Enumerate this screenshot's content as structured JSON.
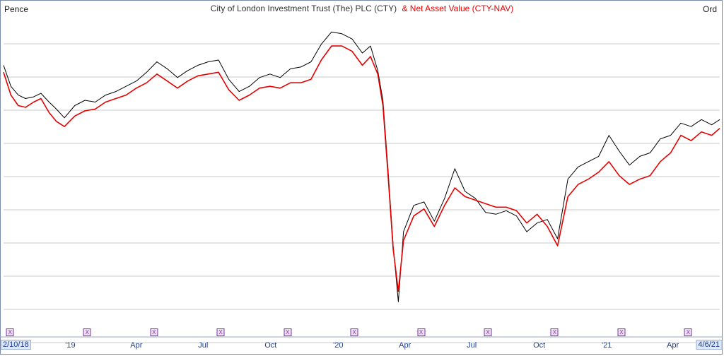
{
  "header": {
    "unit_label": "Pence",
    "title_main": "City of London Investment Trust (The) PLC (CTY)",
    "title_nav": "& Net Asset Value (CTY-NAV)",
    "share_class": "Ord"
  },
  "colors": {
    "price_series": "#000000",
    "nav_series": "#e60000",
    "grid": "#c8c8c8",
    "axis_text": "#1f3f8f",
    "marker": "#7a3a9a"
  },
  "chart_data": {
    "type": "line",
    "title": "City of London Investment Trust (The) PLC (CTY) & Net Asset Value (CTY-NAV)",
    "ylabel": "Pence",
    "ylim": [
      276,
      455
    ],
    "y_ticks_labeled": false,
    "grid": "horizontal",
    "x_ticks": [
      {
        "label": "2/10/18",
        "date": "2018-10-02",
        "edge": "start"
      },
      {
        "label": "'19",
        "date": "2019-01-01"
      },
      {
        "label": "Apr",
        "date": "2019-04-01"
      },
      {
        "label": "Jul",
        "date": "2019-07-01"
      },
      {
        "label": "Oct",
        "date": "2019-10-01"
      },
      {
        "label": "'20",
        "date": "2020-01-01"
      },
      {
        "label": "Apr",
        "date": "2020-04-01"
      },
      {
        "label": "Jul",
        "date": "2020-07-01"
      },
      {
        "label": "Oct",
        "date": "2020-10-01"
      },
      {
        "label": "'21",
        "date": "2021-01-01"
      },
      {
        "label": "Apr",
        "date": "2021-04-01"
      },
      {
        "label": "4/6/21",
        "date": "2021-06-04",
        "edge": "end"
      }
    ],
    "xd_markers": {
      "label": "X",
      "dates": [
        "2018-10-11",
        "2019-01-24",
        "2019-04-25",
        "2019-07-25",
        "2019-10-24",
        "2020-01-23",
        "2020-04-23",
        "2020-07-23",
        "2020-10-22",
        "2021-01-21",
        "2021-04-22"
      ]
    },
    "series": [
      {
        "name": "CTY",
        "color": "#000000",
        "points": [
          [
            "2018-10-02",
            425
          ],
          [
            "2018-10-12",
            413
          ],
          [
            "2018-10-22",
            408
          ],
          [
            "2018-11-01",
            406
          ],
          [
            "2018-11-12",
            407
          ],
          [
            "2018-11-22",
            409
          ],
          [
            "2018-12-03",
            404
          ],
          [
            "2018-12-13",
            400
          ],
          [
            "2018-12-24",
            395
          ],
          [
            "2019-01-07",
            402
          ],
          [
            "2019-01-21",
            405
          ],
          [
            "2019-02-04",
            404
          ],
          [
            "2019-02-18",
            408
          ],
          [
            "2019-03-04",
            410
          ],
          [
            "2019-03-18",
            413
          ],
          [
            "2019-04-01",
            416
          ],
          [
            "2019-04-15",
            421
          ],
          [
            "2019-04-29",
            427
          ],
          [
            "2019-05-13",
            423
          ],
          [
            "2019-05-27",
            418
          ],
          [
            "2019-06-10",
            422
          ],
          [
            "2019-06-24",
            425
          ],
          [
            "2019-07-08",
            427
          ],
          [
            "2019-07-22",
            428
          ],
          [
            "2019-08-05",
            417
          ],
          [
            "2019-08-19",
            410
          ],
          [
            "2019-09-02",
            413
          ],
          [
            "2019-09-16",
            418
          ],
          [
            "2019-09-30",
            420
          ],
          [
            "2019-10-14",
            418
          ],
          [
            "2019-10-28",
            423
          ],
          [
            "2019-11-11",
            424
          ],
          [
            "2019-11-25",
            427
          ],
          [
            "2019-12-09",
            437
          ],
          [
            "2019-12-23",
            444
          ],
          [
            "2020-01-06",
            443
          ],
          [
            "2020-01-20",
            440
          ],
          [
            "2020-02-03",
            432
          ],
          [
            "2020-02-14",
            436
          ],
          [
            "2020-02-24",
            422
          ],
          [
            "2020-03-02",
            405
          ],
          [
            "2020-03-09",
            365
          ],
          [
            "2020-03-16",
            322
          ],
          [
            "2020-03-23",
            290
          ],
          [
            "2020-03-30",
            330
          ],
          [
            "2020-04-13",
            345
          ],
          [
            "2020-04-27",
            347
          ],
          [
            "2020-05-11",
            336
          ],
          [
            "2020-05-25",
            349
          ],
          [
            "2020-06-08",
            366
          ],
          [
            "2020-06-22",
            353
          ],
          [
            "2020-07-06",
            349
          ],
          [
            "2020-07-20",
            341
          ],
          [
            "2020-08-03",
            340
          ],
          [
            "2020-08-17",
            342
          ],
          [
            "2020-08-31",
            339
          ],
          [
            "2020-09-14",
            330
          ],
          [
            "2020-09-28",
            335
          ],
          [
            "2020-10-12",
            337
          ],
          [
            "2020-10-26",
            326
          ],
          [
            "2020-11-09",
            360
          ],
          [
            "2020-11-23",
            367
          ],
          [
            "2020-12-07",
            370
          ],
          [
            "2020-12-21",
            373
          ],
          [
            "2021-01-04",
            385
          ],
          [
            "2021-01-18",
            376
          ],
          [
            "2021-02-01",
            368
          ],
          [
            "2021-02-15",
            373
          ],
          [
            "2021-03-01",
            375
          ],
          [
            "2021-03-15",
            383
          ],
          [
            "2021-03-29",
            385
          ],
          [
            "2021-04-12",
            392
          ],
          [
            "2021-04-26",
            390
          ],
          [
            "2021-05-10",
            394
          ],
          [
            "2021-05-24",
            391
          ],
          [
            "2021-06-04",
            394
          ]
        ]
      },
      {
        "name": "CTY-NAV",
        "color": "#e60000",
        "points": [
          [
            "2018-10-02",
            421
          ],
          [
            "2018-10-12",
            408
          ],
          [
            "2018-10-22",
            402
          ],
          [
            "2018-11-01",
            401
          ],
          [
            "2018-11-12",
            404
          ],
          [
            "2018-11-22",
            406
          ],
          [
            "2018-12-03",
            398
          ],
          [
            "2018-12-13",
            393
          ],
          [
            "2018-12-24",
            390
          ],
          [
            "2019-01-07",
            396
          ],
          [
            "2019-01-21",
            399
          ],
          [
            "2019-02-04",
            400
          ],
          [
            "2019-02-18",
            404
          ],
          [
            "2019-03-04",
            406
          ],
          [
            "2019-03-18",
            408
          ],
          [
            "2019-04-01",
            412
          ],
          [
            "2019-04-15",
            415
          ],
          [
            "2019-04-29",
            420
          ],
          [
            "2019-05-13",
            416
          ],
          [
            "2019-05-27",
            412
          ],
          [
            "2019-06-10",
            416
          ],
          [
            "2019-06-24",
            419
          ],
          [
            "2019-07-08",
            420
          ],
          [
            "2019-07-22",
            421
          ],
          [
            "2019-08-05",
            411
          ],
          [
            "2019-08-19",
            405
          ],
          [
            "2019-09-02",
            408
          ],
          [
            "2019-09-16",
            412
          ],
          [
            "2019-09-30",
            413
          ],
          [
            "2019-10-14",
            412
          ],
          [
            "2019-10-28",
            415
          ],
          [
            "2019-11-11",
            415
          ],
          [
            "2019-11-25",
            417
          ],
          [
            "2019-12-09",
            428
          ],
          [
            "2019-12-23",
            436
          ],
          [
            "2020-01-06",
            436
          ],
          [
            "2020-01-20",
            433
          ],
          [
            "2020-02-03",
            425
          ],
          [
            "2020-02-14",
            430
          ],
          [
            "2020-02-24",
            420
          ],
          [
            "2020-03-02",
            402
          ],
          [
            "2020-03-09",
            362
          ],
          [
            "2020-03-16",
            320
          ],
          [
            "2020-03-23",
            296
          ],
          [
            "2020-03-30",
            325
          ],
          [
            "2020-04-13",
            339
          ],
          [
            "2020-04-27",
            343
          ],
          [
            "2020-05-11",
            333
          ],
          [
            "2020-05-25",
            345
          ],
          [
            "2020-06-08",
            355
          ],
          [
            "2020-06-22",
            350
          ],
          [
            "2020-07-06",
            348
          ],
          [
            "2020-07-20",
            346
          ],
          [
            "2020-08-03",
            344
          ],
          [
            "2020-08-17",
            344
          ],
          [
            "2020-08-31",
            342
          ],
          [
            "2020-09-14",
            335
          ],
          [
            "2020-09-28",
            340
          ],
          [
            "2020-10-12",
            333
          ],
          [
            "2020-10-26",
            322
          ],
          [
            "2020-11-09",
            350
          ],
          [
            "2020-11-23",
            357
          ],
          [
            "2020-12-07",
            360
          ],
          [
            "2020-12-21",
            364
          ],
          [
            "2021-01-04",
            370
          ],
          [
            "2021-01-18",
            362
          ],
          [
            "2021-02-01",
            357
          ],
          [
            "2021-02-15",
            360
          ],
          [
            "2021-03-01",
            362
          ],
          [
            "2021-03-15",
            370
          ],
          [
            "2021-03-29",
            375
          ],
          [
            "2021-04-12",
            385
          ],
          [
            "2021-04-26",
            382
          ],
          [
            "2021-05-10",
            387
          ],
          [
            "2021-05-24",
            385
          ],
          [
            "2021-06-04",
            389
          ]
        ]
      }
    ]
  }
}
